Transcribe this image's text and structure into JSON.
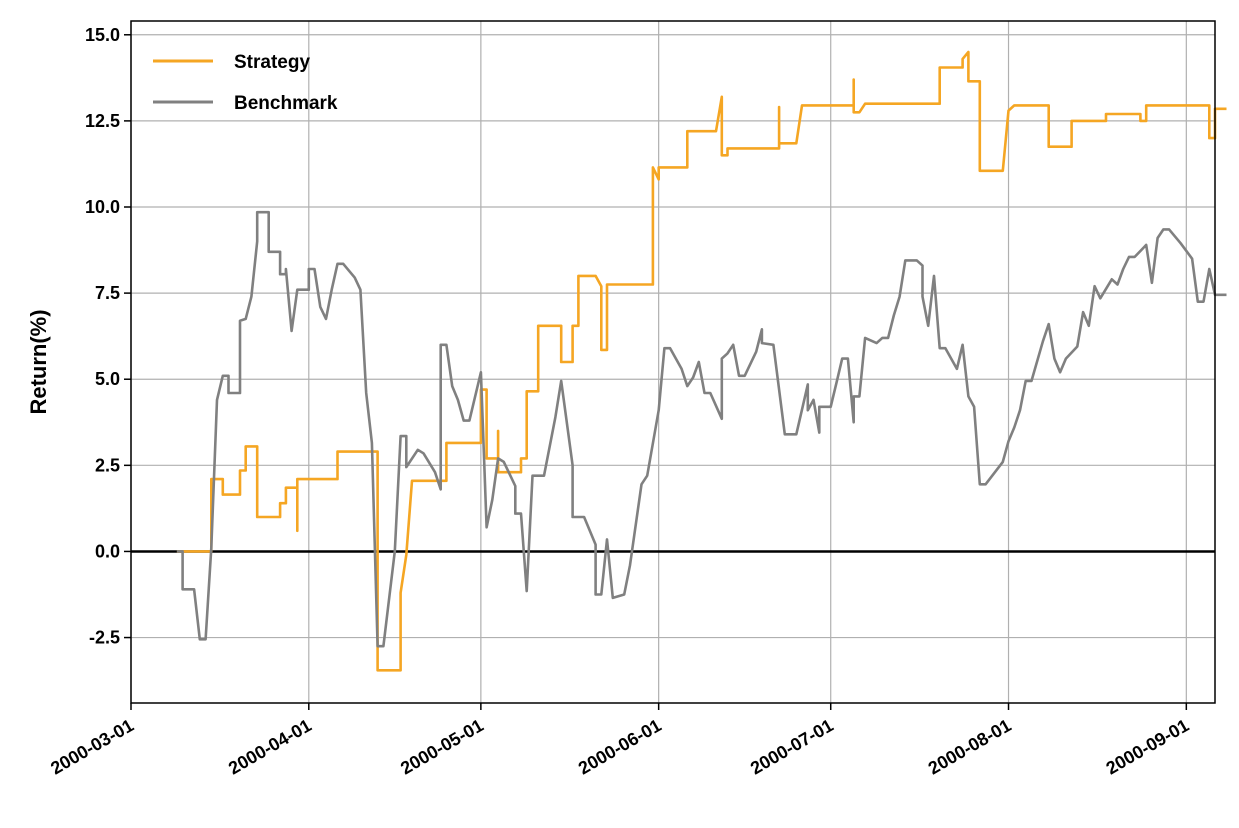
{
  "chart_data": {
    "type": "line",
    "title": "",
    "xlabel": "",
    "ylabel": "Return(%)",
    "x_ticks": [
      "2000-03-01",
      "2000-04-01",
      "2000-05-01",
      "2000-06-01",
      "2000-07-01",
      "2000-08-01",
      "2000-09-01"
    ],
    "y_ticks": [
      "-2.5",
      "0.0",
      "2.5",
      "5.0",
      "7.5",
      "10.0",
      "12.5",
      "15.0"
    ],
    "xlim": [
      "2000-03-01",
      "2000-09-06"
    ],
    "ylim": [
      -4.4,
      15.4
    ],
    "grid": true,
    "zero_line": true,
    "legend_position": "top-left",
    "series": [
      {
        "name": "Strategy",
        "color": "#f5a623",
        "points": [
          [
            "2000-03-09",
            0.0
          ],
          [
            "2000-03-15",
            0.0
          ],
          [
            "2000-03-15",
            2.1
          ],
          [
            "2000-03-17",
            2.1
          ],
          [
            "2000-03-17",
            1.65
          ],
          [
            "2000-03-20",
            1.65
          ],
          [
            "2000-03-20",
            2.35
          ],
          [
            "2000-03-21",
            2.35
          ],
          [
            "2000-03-21",
            3.05
          ],
          [
            "2000-03-23",
            3.05
          ],
          [
            "2000-03-23",
            1.0
          ],
          [
            "2000-03-27",
            1.0
          ],
          [
            "2000-03-27",
            1.4
          ],
          [
            "2000-03-28",
            1.4
          ],
          [
            "2000-03-28",
            1.85
          ],
          [
            "2000-03-30",
            1.85
          ],
          [
            "2000-03-30",
            0.6
          ],
          [
            "2000-03-30",
            2.1
          ],
          [
            "2000-04-06",
            2.1
          ],
          [
            "2000-04-06",
            2.9
          ],
          [
            "2000-04-13",
            2.9
          ],
          [
            "2000-04-13",
            2.3
          ],
          [
            "2000-04-13",
            -3.45
          ],
          [
            "2000-04-17",
            -3.45
          ],
          [
            "2000-04-17",
            -1.2
          ],
          [
            "2000-04-18",
            -0.1
          ],
          [
            "2000-04-19",
            2.05
          ],
          [
            "2000-04-25",
            2.05
          ],
          [
            "2000-04-25",
            3.15
          ],
          [
            "2000-05-01",
            3.15
          ],
          [
            "2000-05-01",
            4.7
          ],
          [
            "2000-05-02",
            4.7
          ],
          [
            "2000-05-02",
            2.7
          ],
          [
            "2000-05-04",
            2.7
          ],
          [
            "2000-05-04",
            3.5
          ],
          [
            "2000-05-04",
            2.3
          ],
          [
            "2000-05-08",
            2.3
          ],
          [
            "2000-05-08",
            2.7
          ],
          [
            "2000-05-09",
            2.7
          ],
          [
            "2000-05-09",
            4.65
          ],
          [
            "2000-05-11",
            4.65
          ],
          [
            "2000-05-11",
            6.55
          ],
          [
            "2000-05-15",
            6.55
          ],
          [
            "2000-05-15",
            5.5
          ],
          [
            "2000-05-17",
            5.5
          ],
          [
            "2000-05-17",
            6.55
          ],
          [
            "2000-05-18",
            6.55
          ],
          [
            "2000-05-18",
            8.0
          ],
          [
            "2000-05-21",
            8.0
          ],
          [
            "2000-05-22",
            7.7
          ],
          [
            "2000-05-22",
            5.85
          ],
          [
            "2000-05-23",
            5.85
          ],
          [
            "2000-05-23",
            7.75
          ],
          [
            "2000-05-31",
            7.75
          ],
          [
            "2000-05-31",
            11.15
          ],
          [
            "2000-06-01",
            10.8
          ],
          [
            "2000-06-01",
            11.15
          ],
          [
            "2000-06-06",
            11.15
          ],
          [
            "2000-06-06",
            12.2
          ],
          [
            "2000-06-11",
            12.2
          ],
          [
            "2000-06-12",
            13.2
          ],
          [
            "2000-06-12",
            11.5
          ],
          [
            "2000-06-13",
            11.5
          ],
          [
            "2000-06-13",
            11.7
          ],
          [
            "2000-06-22",
            11.7
          ],
          [
            "2000-06-22",
            12.9
          ],
          [
            "2000-06-22",
            11.85
          ],
          [
            "2000-06-25",
            11.85
          ],
          [
            "2000-06-26",
            12.95
          ],
          [
            "2000-07-05",
            12.95
          ],
          [
            "2000-07-05",
            13.7
          ],
          [
            "2000-07-05",
            12.75
          ],
          [
            "2000-07-06",
            12.75
          ],
          [
            "2000-07-07",
            13.0
          ],
          [
            "2000-07-20",
            13.0
          ],
          [
            "2000-07-20",
            14.05
          ],
          [
            "2000-07-24",
            14.05
          ],
          [
            "2000-07-24",
            14.3
          ],
          [
            "2000-07-25",
            14.5
          ],
          [
            "2000-07-25",
            13.65
          ],
          [
            "2000-07-27",
            13.65
          ],
          [
            "2000-07-27",
            11.05
          ],
          [
            "2000-07-31",
            11.05
          ],
          [
            "2000-08-01",
            12.8
          ],
          [
            "2000-08-02",
            12.95
          ],
          [
            "2000-08-08",
            12.95
          ],
          [
            "2000-08-08",
            11.75
          ],
          [
            "2000-08-12",
            11.75
          ],
          [
            "2000-08-12",
            12.5
          ],
          [
            "2000-08-18",
            12.5
          ],
          [
            "2000-08-18",
            12.7
          ],
          [
            "2000-08-24",
            12.7
          ],
          [
            "2000-08-24",
            12.5
          ],
          [
            "2000-08-25",
            12.5
          ],
          [
            "2000-08-25",
            12.95
          ],
          [
            "2000-09-05",
            12.95
          ],
          [
            "2000-09-05",
            12.0
          ],
          [
            "2000-09-06",
            12.0
          ],
          [
            "2000-09-06",
            12.85
          ],
          [
            "2000-09-08",
            12.85
          ]
        ]
      },
      {
        "name": "Benchmark",
        "color": "#808080",
        "points": [
          [
            "2000-03-09",
            0.0
          ],
          [
            "2000-03-10",
            0.0
          ],
          [
            "2000-03-10",
            -1.1
          ],
          [
            "2000-03-12",
            -1.1
          ],
          [
            "2000-03-13",
            -2.55
          ],
          [
            "2000-03-14",
            -2.55
          ],
          [
            "2000-03-15",
            0.1
          ],
          [
            "2000-03-16",
            4.4
          ],
          [
            "2000-03-17",
            5.1
          ],
          [
            "2000-03-18",
            5.1
          ],
          [
            "2000-03-18",
            4.6
          ],
          [
            "2000-03-20",
            4.6
          ],
          [
            "2000-03-20",
            6.7
          ],
          [
            "2000-03-21",
            6.75
          ],
          [
            "2000-03-22",
            7.4
          ],
          [
            "2000-03-23",
            9.0
          ],
          [
            "2000-03-23",
            9.85
          ],
          [
            "2000-03-25",
            9.85
          ],
          [
            "2000-03-25",
            8.7
          ],
          [
            "2000-03-27",
            8.7
          ],
          [
            "2000-03-27",
            8.05
          ],
          [
            "2000-03-28",
            8.05
          ],
          [
            "2000-03-28",
            8.2
          ],
          [
            "2000-03-29",
            6.4
          ],
          [
            "2000-03-30",
            7.6
          ],
          [
            "2000-04-01",
            7.6
          ],
          [
            "2000-04-01",
            8.2
          ],
          [
            "2000-04-02",
            8.2
          ],
          [
            "2000-04-03",
            7.1
          ],
          [
            "2000-04-04",
            6.75
          ],
          [
            "2000-04-05",
            7.6
          ],
          [
            "2000-04-06",
            8.35
          ],
          [
            "2000-04-07",
            8.35
          ],
          [
            "2000-04-09",
            7.95
          ],
          [
            "2000-04-10",
            7.6
          ],
          [
            "2000-04-11",
            4.6
          ],
          [
            "2000-04-12",
            3.15
          ],
          [
            "2000-04-13",
            -2.75
          ],
          [
            "2000-04-14",
            -2.75
          ],
          [
            "2000-04-16",
            0.0
          ],
          [
            "2000-04-17",
            3.35
          ],
          [
            "2000-04-18",
            3.35
          ],
          [
            "2000-04-18",
            2.45
          ],
          [
            "2000-04-20",
            2.95
          ],
          [
            "2000-04-21",
            2.85
          ],
          [
            "2000-04-23",
            2.3
          ],
          [
            "2000-04-24",
            1.8
          ],
          [
            "2000-04-24",
            6.0
          ],
          [
            "2000-04-25",
            6.0
          ],
          [
            "2000-04-26",
            4.8
          ],
          [
            "2000-04-27",
            4.4
          ],
          [
            "2000-04-28",
            3.8
          ],
          [
            "2000-04-29",
            3.8
          ],
          [
            "2000-05-01",
            5.2
          ],
          [
            "2000-05-02",
            0.7
          ],
          [
            "2000-05-03",
            1.5
          ],
          [
            "2000-05-04",
            2.7
          ],
          [
            "2000-05-05",
            2.6
          ],
          [
            "2000-05-07",
            1.9
          ],
          [
            "2000-05-07",
            1.1
          ],
          [
            "2000-05-08",
            1.1
          ],
          [
            "2000-05-09",
            -1.15
          ],
          [
            "2000-05-10",
            2.2
          ],
          [
            "2000-05-12",
            2.2
          ],
          [
            "2000-05-14",
            3.9
          ],
          [
            "2000-05-15",
            4.95
          ],
          [
            "2000-05-17",
            2.5
          ],
          [
            "2000-05-17",
            1.0
          ],
          [
            "2000-05-19",
            1.0
          ],
          [
            "2000-05-21",
            0.2
          ],
          [
            "2000-05-21",
            -1.25
          ],
          [
            "2000-05-22",
            -1.25
          ],
          [
            "2000-05-23",
            0.35
          ],
          [
            "2000-05-24",
            -1.35
          ],
          [
            "2000-05-26",
            -1.25
          ],
          [
            "2000-05-27",
            -0.4
          ],
          [
            "2000-05-29",
            1.95
          ],
          [
            "2000-05-30",
            2.2
          ],
          [
            "2000-06-01",
            4.1
          ],
          [
            "2000-06-02",
            5.9
          ],
          [
            "2000-06-03",
            5.9
          ],
          [
            "2000-06-05",
            5.3
          ],
          [
            "2000-06-06",
            4.8
          ],
          [
            "2000-06-07",
            5.05
          ],
          [
            "2000-06-08",
            5.5
          ],
          [
            "2000-06-09",
            4.6
          ],
          [
            "2000-06-10",
            4.6
          ],
          [
            "2000-06-12",
            3.85
          ],
          [
            "2000-06-12",
            5.6
          ],
          [
            "2000-06-13",
            5.75
          ],
          [
            "2000-06-14",
            6.0
          ],
          [
            "2000-06-15",
            5.1
          ],
          [
            "2000-06-16",
            5.1
          ],
          [
            "2000-06-18",
            5.8
          ],
          [
            "2000-06-19",
            6.45
          ],
          [
            "2000-06-19",
            6.05
          ],
          [
            "2000-06-21",
            6.0
          ],
          [
            "2000-06-23",
            3.4
          ],
          [
            "2000-06-25",
            3.4
          ],
          [
            "2000-06-27",
            4.85
          ],
          [
            "2000-06-27",
            4.1
          ],
          [
            "2000-06-28",
            4.4
          ],
          [
            "2000-06-29",
            3.45
          ],
          [
            "2000-06-29",
            4.2
          ],
          [
            "2000-07-01",
            4.2
          ],
          [
            "2000-07-02",
            4.9
          ],
          [
            "2000-07-03",
            5.6
          ],
          [
            "2000-07-04",
            5.6
          ],
          [
            "2000-07-05",
            3.75
          ],
          [
            "2000-07-05",
            4.5
          ],
          [
            "2000-07-06",
            4.5
          ],
          [
            "2000-07-07",
            6.2
          ],
          [
            "2000-07-09",
            6.05
          ],
          [
            "2000-07-10",
            6.2
          ],
          [
            "2000-07-11",
            6.2
          ],
          [
            "2000-07-12",
            6.85
          ],
          [
            "2000-07-13",
            7.4
          ],
          [
            "2000-07-14",
            8.45
          ],
          [
            "2000-07-16",
            8.45
          ],
          [
            "2000-07-17",
            8.3
          ],
          [
            "2000-07-17",
            7.4
          ],
          [
            "2000-07-18",
            6.55
          ],
          [
            "2000-07-19",
            8.0
          ],
          [
            "2000-07-20",
            5.9
          ],
          [
            "2000-07-21",
            5.9
          ],
          [
            "2000-07-23",
            5.3
          ],
          [
            "2000-07-24",
            6.0
          ],
          [
            "2000-07-25",
            4.5
          ],
          [
            "2000-07-26",
            4.2
          ],
          [
            "2000-07-27",
            1.95
          ],
          [
            "2000-07-28",
            1.95
          ],
          [
            "2000-07-31",
            2.6
          ],
          [
            "2000-08-01",
            3.2
          ],
          [
            "2000-08-02",
            3.6
          ],
          [
            "2000-08-03",
            4.1
          ],
          [
            "2000-08-04",
            4.95
          ],
          [
            "2000-08-05",
            4.95
          ],
          [
            "2000-08-07",
            6.1
          ],
          [
            "2000-08-08",
            6.6
          ],
          [
            "2000-08-09",
            5.6
          ],
          [
            "2000-08-10",
            5.2
          ],
          [
            "2000-08-11",
            5.6
          ],
          [
            "2000-08-13",
            5.95
          ],
          [
            "2000-08-14",
            6.95
          ],
          [
            "2000-08-15",
            6.55
          ],
          [
            "2000-08-16",
            7.7
          ],
          [
            "2000-08-17",
            7.35
          ],
          [
            "2000-08-19",
            7.9
          ],
          [
            "2000-08-20",
            7.75
          ],
          [
            "2000-08-21",
            8.2
          ],
          [
            "2000-08-22",
            8.55
          ],
          [
            "2000-08-23",
            8.55
          ],
          [
            "2000-08-25",
            8.9
          ],
          [
            "2000-08-26",
            7.8
          ],
          [
            "2000-08-27",
            9.1
          ],
          [
            "2000-08-28",
            9.35
          ],
          [
            "2000-08-29",
            9.35
          ],
          [
            "2000-08-31",
            8.95
          ],
          [
            "2000-09-02",
            8.5
          ],
          [
            "2000-09-03",
            7.25
          ],
          [
            "2000-09-04",
            7.25
          ],
          [
            "2000-09-05",
            8.2
          ],
          [
            "2000-09-06",
            7.45
          ],
          [
            "2000-09-08",
            7.45
          ]
        ]
      }
    ]
  }
}
